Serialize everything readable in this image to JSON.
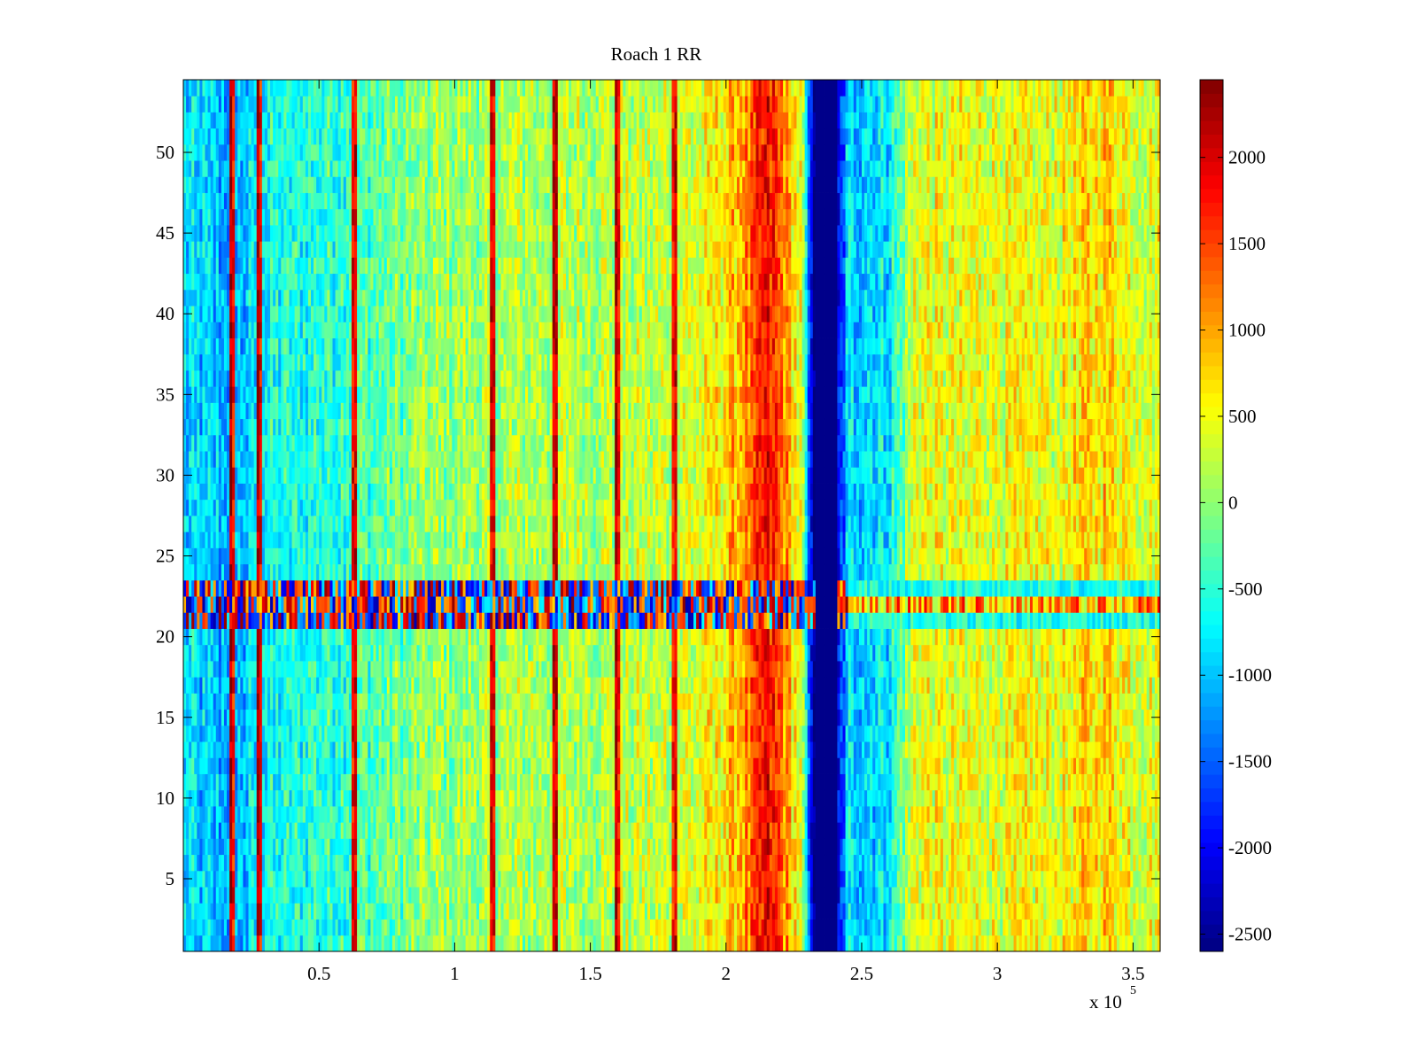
{
  "chart_data": {
    "type": "heatmap",
    "title": "Roach 1 RR",
    "xlabel": "",
    "ylabel": "",
    "x_range": [
      0,
      360000
    ],
    "y_range": [
      0.5,
      54.5
    ],
    "x_ticks": [
      50000,
      100000,
      150000,
      200000,
      250000,
      300000,
      350000
    ],
    "x_tick_labels": [
      "0.5",
      "1",
      "1.5",
      "2",
      "2.5",
      "3",
      "3.5"
    ],
    "x_multiplier_label": "x 10",
    "x_multiplier_exponent": "5",
    "y_ticks": [
      5,
      10,
      15,
      20,
      25,
      30,
      35,
      40,
      45,
      50
    ],
    "y_tick_labels": [
      "5",
      "10",
      "15",
      "20",
      "25",
      "30",
      "35",
      "40",
      "45",
      "50"
    ],
    "colorbar": {
      "colormap": "jet",
      "range": [
        -2600,
        2450
      ],
      "ticks": [
        2000,
        1500,
        1000,
        500,
        0,
        -500,
        -1000,
        -1500,
        -2000,
        -2500
      ],
      "tick_labels": [
        "2000",
        "1500",
        "1000",
        "500",
        "0",
        "-500",
        "-1000",
        "-1500",
        "-2000",
        "-2500"
      ]
    },
    "row_count": 54,
    "anomalous_rows": [
      21,
      22,
      23
    ],
    "column_profile": {
      "description": "approximate mean value per x-position (data units), pattern constant across rows",
      "x": [
        0,
        10000,
        20000,
        30000,
        50000,
        70000,
        90000,
        110000,
        130000,
        150000,
        170000,
        190000,
        200000,
        210000,
        215000,
        220000,
        228000,
        232000,
        240000,
        245000,
        260000,
        270000,
        285000,
        300000,
        320000,
        340000,
        350000,
        360000
      ],
      "values": [
        -900,
        -1000,
        -1100,
        -700,
        -500,
        -300,
        0,
        100,
        150,
        200,
        200,
        400,
        700,
        1300,
        1800,
        1400,
        300,
        -2550,
        -2550,
        -900,
        -800,
        500,
        400,
        450,
        450,
        800,
        500,
        450
      ]
    },
    "vertical_stripes_x": [
      18000,
      28000,
      63000,
      114000,
      137000,
      160000,
      181000
    ],
    "blue_band_x": [
      233000,
      241000
    ]
  },
  "colors": {
    "background": "#ffffff",
    "axis": "#000000"
  }
}
